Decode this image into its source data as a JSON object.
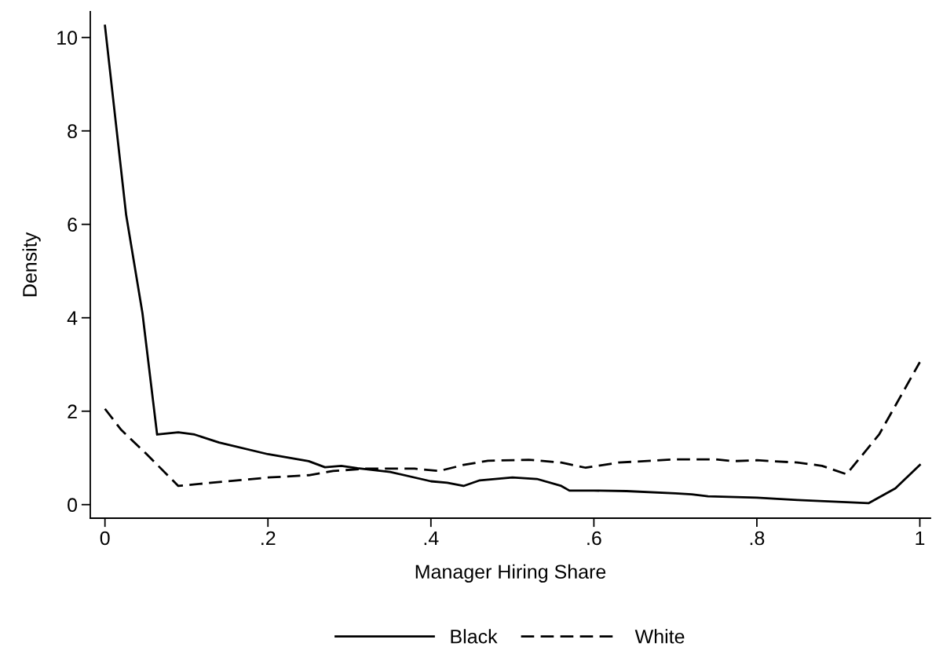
{
  "chart_data": {
    "type": "line",
    "xlabel": "Manager Hiring Share",
    "ylabel": "Density",
    "xlim": [
      -0.018,
      1.013
    ],
    "ylim": [
      -0.29,
      10.55
    ],
    "xticks": [
      0,
      {
        "value": 0.2,
        "label": ".2"
      },
      {
        "value": 0.4,
        "label": ".4"
      },
      {
        "value": 0.6,
        "label": ".6"
      },
      {
        "value": 0.8,
        "label": ".8"
      },
      1
    ],
    "yticks": [
      0,
      2,
      4,
      6,
      8,
      10
    ],
    "grid": false,
    "legend": "bottom",
    "marker": "none",
    "series": [
      {
        "name": "Black",
        "color": "#000000",
        "line_style": "solid",
        "x": [
          0,
          0.026,
          0.046,
          0.064,
          0.09,
          0.11,
          0.14,
          0.2,
          0.25,
          0.27,
          0.29,
          0.31,
          0.35,
          0.4,
          0.42,
          0.44,
          0.46,
          0.5,
          0.53,
          0.56,
          0.57,
          0.6,
          0.64,
          0.7,
          0.72,
          0.74,
          0.8,
          0.85,
          0.937,
          0.97,
          1
        ],
        "values": [
          10.25,
          6.2,
          4.1,
          1.5,
          1.55,
          1.5,
          1.33,
          1.08,
          0.93,
          0.8,
          0.83,
          0.78,
          0.7,
          0.5,
          0.47,
          0.4,
          0.52,
          0.58,
          0.55,
          0.4,
          0.3,
          0.3,
          0.29,
          0.24,
          0.22,
          0.18,
          0.15,
          0.1,
          0.03,
          0.35,
          0.85
        ]
      },
      {
        "name": "White",
        "color": "#000000",
        "line_style": "dashed",
        "x": [
          0,
          0.02,
          0.05,
          0.09,
          0.15,
          0.2,
          0.25,
          0.28,
          0.32,
          0.38,
          0.41,
          0.44,
          0.47,
          0.52,
          0.56,
          0.59,
          0.63,
          0.7,
          0.75,
          0.77,
          0.8,
          0.85,
          0.88,
          0.91,
          0.95,
          1
        ],
        "values": [
          2.05,
          1.6,
          1.1,
          0.4,
          0.5,
          0.58,
          0.63,
          0.72,
          0.77,
          0.77,
          0.72,
          0.85,
          0.94,
          0.96,
          0.9,
          0.79,
          0.9,
          0.97,
          0.97,
          0.93,
          0.95,
          0.9,
          0.83,
          0.65,
          1.5,
          3.05
        ]
      }
    ]
  }
}
